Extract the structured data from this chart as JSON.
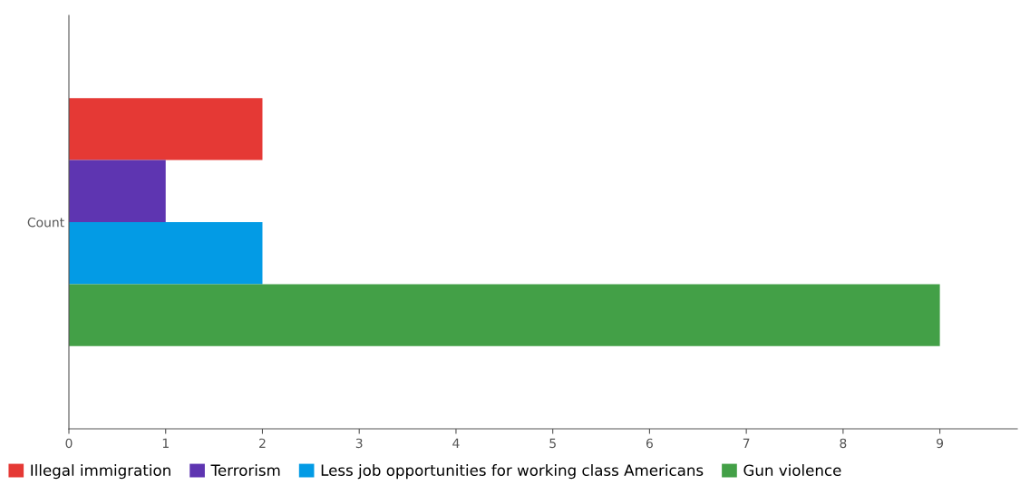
{
  "chart_data": {
    "type": "bar",
    "orientation": "horizontal",
    "categories": [
      "Count"
    ],
    "series": [
      {
        "name": "Illegal immigration",
        "color": "#e53935",
        "values": [
          2
        ]
      },
      {
        "name": "Terrorism",
        "color": "#5e35b1",
        "values": [
          1
        ]
      },
      {
        "name": "Less job opportunities for working class Americans",
        "color": "#039be5",
        "values": [
          2
        ]
      },
      {
        "name": "Gun violence",
        "color": "#43a047",
        "values": [
          9
        ]
      }
    ],
    "xlim": [
      0,
      9.8
    ],
    "xticks": [
      0,
      1,
      2,
      3,
      4,
      5,
      6,
      7,
      8,
      9
    ],
    "grid": false,
    "legend": "bottom"
  }
}
